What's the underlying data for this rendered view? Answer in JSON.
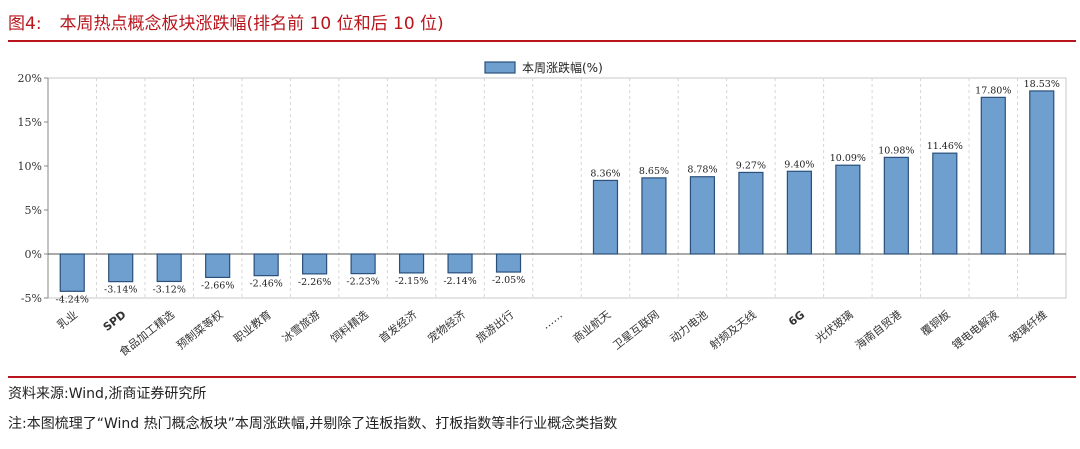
{
  "figure": {
    "label": "图4:",
    "title": "本周热点概念板块涨跌幅(排名前 10 位和后 10 位)"
  },
  "chart_data": {
    "type": "bar",
    "categories": [
      "乳业",
      "SPD",
      "食品加工精选",
      "预制菜等权",
      "职业教育",
      "冰雪旅游",
      "饲料精选",
      "首发经济",
      "宠物经济",
      "旅游出行",
      "……",
      "商业航天",
      "卫星互联网",
      "动力电池",
      "射频及天线",
      "6G",
      "光伏玻璃",
      "海南自贸港",
      "覆铜板",
      "锂电电解液",
      "玻璃纤维"
    ],
    "series": [
      {
        "name": "本周涨跌幅(%)",
        "values": [
          -4.24,
          -3.14,
          -3.12,
          -2.66,
          -2.46,
          -2.26,
          -2.23,
          -2.15,
          -2.14,
          -2.05,
          null,
          8.36,
          8.65,
          8.78,
          9.27,
          9.4,
          10.09,
          10.98,
          11.46,
          17.8,
          18.53
        ],
        "data_labels": [
          "-4.24%",
          "-3.14%",
          "-3.12%",
          "-2.66%",
          "-2.46%",
          "-2.26%",
          "-2.23%",
          "-2.15%",
          "-2.14%",
          "-2.05%",
          "",
          "8.36%",
          "8.65%",
          "8.78%",
          "9.27%",
          "9.40%",
          "10.09%",
          "10.98%",
          "11.46%",
          "17.80%",
          "18.53%"
        ]
      }
    ],
    "ylim": [
      -5,
      20
    ],
    "yticks": [
      -5,
      0,
      5,
      10,
      15,
      20
    ],
    "ytick_labels": [
      "-5%",
      "0%",
      "5%",
      "10%",
      "15%",
      "20%"
    ],
    "grid": "vertical dashed",
    "legend_position": "top-center",
    "colors": {
      "bar_fill": "#6f9fcf",
      "bar_stroke": "#2b4f7a"
    }
  },
  "notes": {
    "source": "资料来源:Wind,浙商证券研究所",
    "remark": "注:本图梳理了“Wind 热门概念板块”本周涨跌幅,并剔除了连板指数、打板指数等非行业概念类指数"
  },
  "colors": {
    "accent": "#b8141c"
  }
}
